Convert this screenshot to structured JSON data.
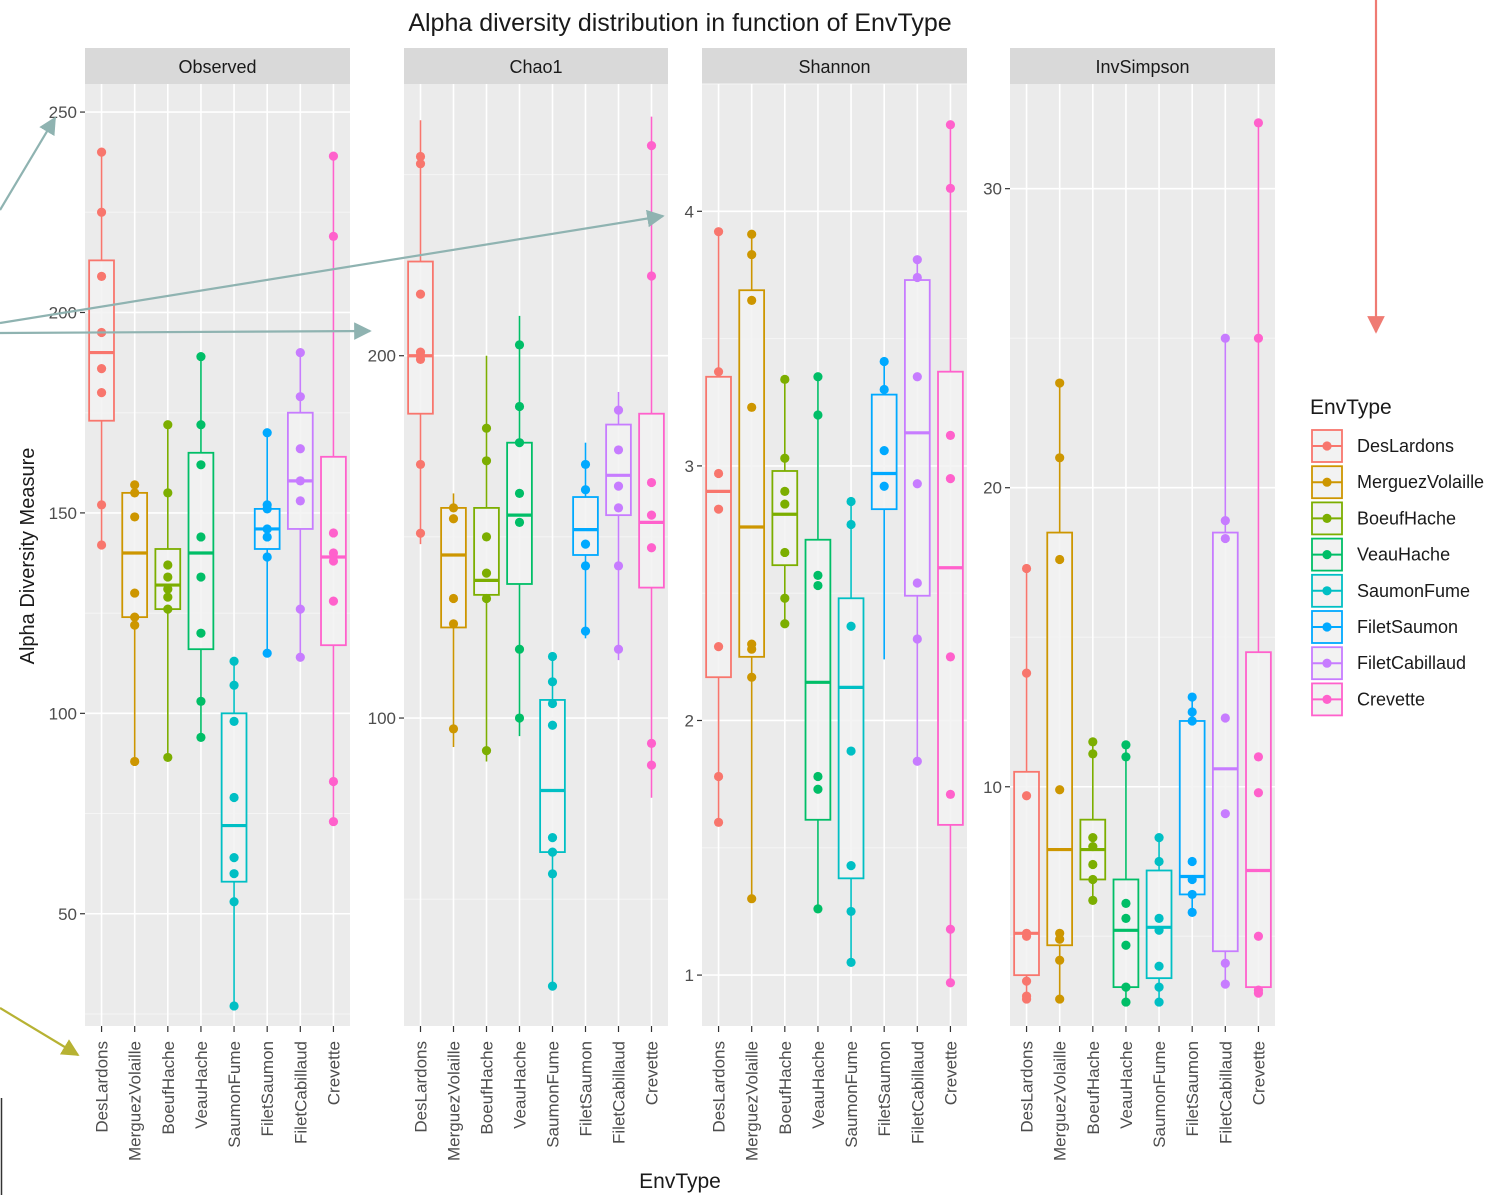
{
  "chart_data": {
    "type": "box",
    "title": "Alpha diversity distribution in function of EnvType",
    "xlabel": "EnvType",
    "ylabel": "Alpha Diversity Measure",
    "categories": [
      "DesLardons",
      "MerguezVolaille",
      "BoeufHache",
      "VeauHache",
      "SaumonFume",
      "FiletSaumon",
      "FiletCabillaud",
      "Crevette"
    ],
    "colors": [
      "#F8766D",
      "#CD9600",
      "#7CAE00",
      "#00BE67",
      "#00BFC4",
      "#00A9FF",
      "#C77CFF",
      "#FF61CC"
    ],
    "legend": {
      "title": "EnvType",
      "position": "right"
    },
    "grid": true,
    "panels": [
      {
        "name": "Observed",
        "ylim": [
          22,
          257
        ],
        "yticks": [
          50,
          100,
          150,
          200,
          250
        ],
        "boxes": [
          {
            "q1": 173,
            "median": 190,
            "q3": 213,
            "whisker_low": 142,
            "whisker_high": 240
          },
          {
            "q1": 124,
            "median": 140,
            "q3": 155,
            "whisker_low": 88,
            "whisker_high": 157
          },
          {
            "q1": 126,
            "median": 132,
            "q3": 141,
            "whisker_low": 89,
            "whisker_high": 172
          },
          {
            "q1": 116,
            "median": 140,
            "q3": 165,
            "whisker_low": 94,
            "whisker_high": 189
          },
          {
            "q1": 58,
            "median": 72,
            "q3": 100,
            "whisker_low": 27,
            "whisker_high": 113
          },
          {
            "q1": 141,
            "median": 146,
            "q3": 151,
            "whisker_low": 115,
            "whisker_high": 170
          },
          {
            "q1": 146,
            "median": 158,
            "q3": 175,
            "whisker_low": 114,
            "whisker_high": 190
          },
          {
            "q1": 117,
            "median": 139,
            "q3": 164,
            "whisker_low": 73,
            "whisker_high": 239
          }
        ],
        "points": [
          [
            240,
            225,
            209,
            195,
            186,
            180,
            152,
            142
          ],
          [
            157,
            155,
            149,
            130,
            124,
            122,
            88
          ],
          [
            172,
            155,
            137,
            134,
            131,
            129,
            126,
            89
          ],
          [
            189,
            172,
            162,
            144,
            134,
            120,
            103,
            94
          ],
          [
            113,
            107,
            98,
            79,
            64,
            60,
            53,
            27
          ],
          [
            170,
            152,
            151,
            146,
            144,
            139,
            115
          ],
          [
            190,
            179,
            166,
            158,
            153,
            126,
            114
          ],
          [
            239,
            219,
            145,
            140,
            138,
            128,
            83,
            73
          ]
        ]
      },
      {
        "name": "Chao1",
        "ylim": [
          15,
          275
        ],
        "yticks": [
          100,
          200
        ],
        "boxes": [
          {
            "q1": 184,
            "median": 200,
            "q3": 226,
            "whisker_low": 148,
            "whisker_high": 265
          },
          {
            "q1": 125,
            "median": 145,
            "q3": 158,
            "whisker_low": 92,
            "whisker_high": 162
          },
          {
            "q1": 134,
            "median": 138,
            "q3": 158,
            "whisker_low": 88,
            "whisker_high": 200
          },
          {
            "q1": 137,
            "median": 156,
            "q3": 176,
            "whisker_low": 95,
            "whisker_high": 211
          },
          {
            "q1": 63,
            "median": 80,
            "q3": 105,
            "whisker_low": 25,
            "whisker_high": 118
          },
          {
            "q1": 145,
            "median": 152,
            "q3": 161,
            "whisker_low": 122,
            "whisker_high": 176
          },
          {
            "q1": 156,
            "median": 167,
            "q3": 181,
            "whisker_low": 116,
            "whisker_high": 190
          },
          {
            "q1": 136,
            "median": 154,
            "q3": 184,
            "whisker_low": 78,
            "whisker_high": 266
          }
        ],
        "points": [
          [
            255,
            253,
            217,
            201,
            200,
            199,
            170,
            151
          ],
          [
            158,
            155,
            133,
            126,
            97
          ],
          [
            180,
            171,
            150,
            140,
            133,
            91
          ],
          [
            203,
            186,
            176,
            162,
            154,
            119,
            100
          ],
          [
            117,
            110,
            104,
            98,
            67,
            63,
            57,
            26
          ],
          [
            170,
            163,
            148,
            142,
            124
          ],
          [
            185,
            174,
            164,
            158,
            142,
            119
          ],
          [
            258,
            222,
            165,
            156,
            147,
            93,
            87
          ]
        ]
      },
      {
        "name": "Shannon",
        "ylim": [
          0.8,
          4.5
        ],
        "yticks": [
          1,
          2,
          3,
          4
        ],
        "boxes": [
          {
            "q1": 2.17,
            "median": 2.9,
            "q3": 3.35,
            "whisker_low": 1.6,
            "whisker_high": 3.92
          },
          {
            "q1": 2.25,
            "median": 2.76,
            "q3": 3.69,
            "whisker_low": 1.3,
            "whisker_high": 3.91
          },
          {
            "q1": 2.61,
            "median": 2.81,
            "q3": 2.98,
            "whisker_low": 2.38,
            "whisker_high": 3.34
          },
          {
            "q1": 1.61,
            "median": 2.15,
            "q3": 2.71,
            "whisker_low": 1.26,
            "whisker_high": 3.35
          },
          {
            "q1": 1.38,
            "median": 2.13,
            "q3": 2.48,
            "whisker_low": 1.05,
            "whisker_high": 2.86
          },
          {
            "q1": 2.83,
            "median": 2.97,
            "q3": 3.28,
            "whisker_low": 2.24,
            "whisker_high": 3.41
          },
          {
            "q1": 2.49,
            "median": 3.13,
            "q3": 3.73,
            "whisker_low": 1.84,
            "whisker_high": 3.81
          },
          {
            "q1": 1.59,
            "median": 2.6,
            "q3": 3.37,
            "whisker_low": 0.97,
            "whisker_high": 4.34
          }
        ],
        "points": [
          [
            3.92,
            3.37,
            2.97,
            2.83,
            2.29,
            1.78,
            1.6
          ],
          [
            3.91,
            3.83,
            3.65,
            3.23,
            2.3,
            2.28,
            2.17,
            1.3
          ],
          [
            3.34,
            3.03,
            2.9,
            2.85,
            2.66,
            2.48,
            2.38
          ],
          [
            3.35,
            3.2,
            2.57,
            2.53,
            1.78,
            1.73,
            1.26
          ],
          [
            2.86,
            2.77,
            2.37,
            1.88,
            1.43,
            1.25,
            1.05
          ],
          [
            3.41,
            3.3,
            3.06,
            2.92
          ],
          [
            3.81,
            3.74,
            3.35,
            2.93,
            2.54,
            2.32,
            1.84
          ],
          [
            4.34,
            4.09,
            3.12,
            2.95,
            2.25,
            1.71,
            1.18,
            0.97
          ]
        ]
      },
      {
        "name": "InvSimpson",
        "ylim": [
          2.0,
          33.5
        ],
        "yticks": [
          10,
          20,
          30
        ],
        "boxes": [
          {
            "q1": 3.7,
            "median": 5.1,
            "q3": 10.5,
            "whisker_low": 2.9,
            "whisker_high": 17.3
          },
          {
            "q1": 4.7,
            "median": 7.9,
            "q3": 18.5,
            "whisker_low": 2.9,
            "whisker_high": 23.5
          },
          {
            "q1": 6.9,
            "median": 7.9,
            "q3": 8.9,
            "whisker_low": 6.2,
            "whisker_high": 11.5
          },
          {
            "q1": 3.3,
            "median": 5.2,
            "q3": 6.9,
            "whisker_low": 2.8,
            "whisker_high": 11.4
          },
          {
            "q1": 3.6,
            "median": 5.3,
            "q3": 7.2,
            "whisker_low": 2.8,
            "whisker_high": 8.3
          },
          {
            "q1": 6.4,
            "median": 7.0,
            "q3": 12.2,
            "whisker_low": 5.8,
            "whisker_high": 13.0
          },
          {
            "q1": 4.5,
            "median": 10.6,
            "q3": 18.5,
            "whisker_low": 3.3,
            "whisker_high": 25.0
          },
          {
            "q1": 3.3,
            "median": 7.2,
            "q3": 14.5,
            "whisker_low": 3.0,
            "whisker_high": 32.2
          }
        ],
        "points": [
          [
            17.3,
            13.8,
            9.7,
            5.1,
            5.0,
            3.5,
            3.0,
            2.9
          ],
          [
            23.5,
            21.0,
            17.6,
            9.9,
            5.1,
            4.9,
            4.2,
            2.9
          ],
          [
            11.5,
            11.1,
            8.3,
            8.0,
            7.4,
            6.9,
            6.2
          ],
          [
            11.4,
            11.0,
            6.1,
            5.6,
            4.7,
            3.3,
            2.8
          ],
          [
            8.3,
            7.5,
            5.6,
            5.2,
            4.0,
            3.3,
            2.8
          ],
          [
            13.0,
            12.5,
            12.2,
            7.5,
            6.9,
            6.4,
            5.8
          ],
          [
            25.0,
            18.9,
            18.3,
            12.3,
            9.1,
            4.1,
            3.4
          ],
          [
            32.2,
            25.0,
            11.0,
            9.8,
            5.0,
            3.2,
            3.1
          ]
        ]
      }
    ]
  }
}
